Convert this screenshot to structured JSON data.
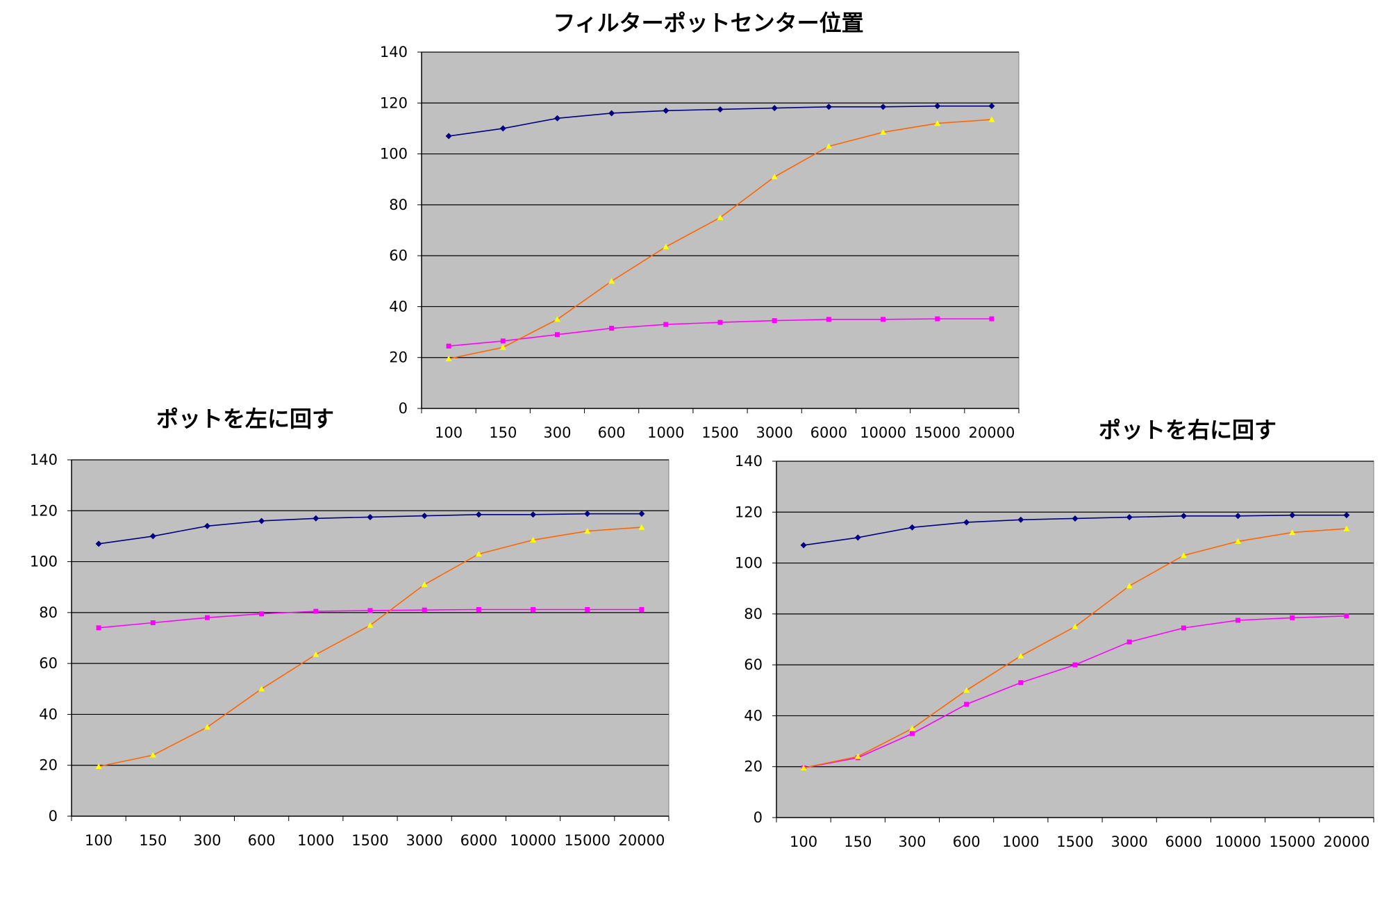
{
  "chart_data": [
    {
      "type": "line",
      "title": "フィルターポットセンター位置",
      "categories": [
        "100",
        "150",
        "300",
        "600",
        "1000",
        "1500",
        "3000",
        "6000",
        "10000",
        "15000",
        "20000"
      ],
      "ylim": [
        0,
        140
      ],
      "yticks": [
        0,
        20,
        40,
        60,
        80,
        100,
        120,
        140
      ],
      "grid": true,
      "plot_background": "#c0c0c0",
      "series": [
        {
          "values": [
            107,
            110,
            114,
            116,
            117,
            117.5,
            118,
            118.5,
            118.5,
            118.8,
            118.8
          ],
          "color": "#000080",
          "marker": "diamond"
        },
        {
          "values": [
            24.5,
            26.5,
            29,
            31.5,
            33,
            33.8,
            34.5,
            35,
            35,
            35.2,
            35.2
          ],
          "color": "#ff00ff",
          "marker": "square"
        },
        {
          "values": [
            19.5,
            24,
            35,
            50,
            63.5,
            75,
            91,
            103,
            108.5,
            112,
            113.5
          ],
          "color": "#ff6600",
          "marker": "triangle",
          "marker_color": "#ffff00"
        }
      ]
    },
    {
      "type": "line",
      "title": "ポットを左に回す",
      "categories": [
        "100",
        "150",
        "300",
        "600",
        "1000",
        "1500",
        "3000",
        "6000",
        "10000",
        "15000",
        "20000"
      ],
      "ylim": [
        0,
        140
      ],
      "yticks": [
        0,
        20,
        40,
        60,
        80,
        100,
        120,
        140
      ],
      "grid": true,
      "plot_background": "#c0c0c0",
      "series": [
        {
          "values": [
            107,
            110,
            114,
            116,
            117,
            117.5,
            118,
            118.5,
            118.5,
            118.8,
            118.8
          ],
          "color": "#000080",
          "marker": "diamond"
        },
        {
          "values": [
            74,
            76,
            78,
            79.5,
            80.5,
            80.8,
            81,
            81.2,
            81.2,
            81.2,
            81.2
          ],
          "color": "#ff00ff",
          "marker": "square"
        },
        {
          "values": [
            19.5,
            24,
            35,
            50,
            63.5,
            75,
            91,
            103,
            108.5,
            112,
            113.5
          ],
          "color": "#ff6600",
          "marker": "triangle",
          "marker_color": "#ffff00"
        }
      ]
    },
    {
      "type": "line",
      "title": "ポットを右に回す",
      "categories": [
        "100",
        "150",
        "300",
        "600",
        "1000",
        "1500",
        "3000",
        "6000",
        "10000",
        "15000",
        "20000"
      ],
      "ylim": [
        0,
        140
      ],
      "yticks": [
        0,
        20,
        40,
        60,
        80,
        100,
        120,
        140
      ],
      "grid": true,
      "plot_background": "#c0c0c0",
      "series": [
        {
          "values": [
            107,
            110,
            114,
            116,
            117,
            117.5,
            118,
            118.5,
            118.5,
            118.8,
            118.8
          ],
          "color": "#000080",
          "marker": "diamond"
        },
        {
          "values": [
            19.5,
            23.5,
            33,
            44.5,
            53,
            60,
            69,
            74.5,
            77.5,
            78.5,
            79.2
          ],
          "color": "#ff00ff",
          "marker": "square"
        },
        {
          "values": [
            19.5,
            24,
            35,
            50,
            63.5,
            75,
            91,
            103,
            108.5,
            112,
            113.5
          ],
          "color": "#ff6600",
          "marker": "triangle",
          "marker_color": "#ffff00"
        }
      ]
    }
  ]
}
